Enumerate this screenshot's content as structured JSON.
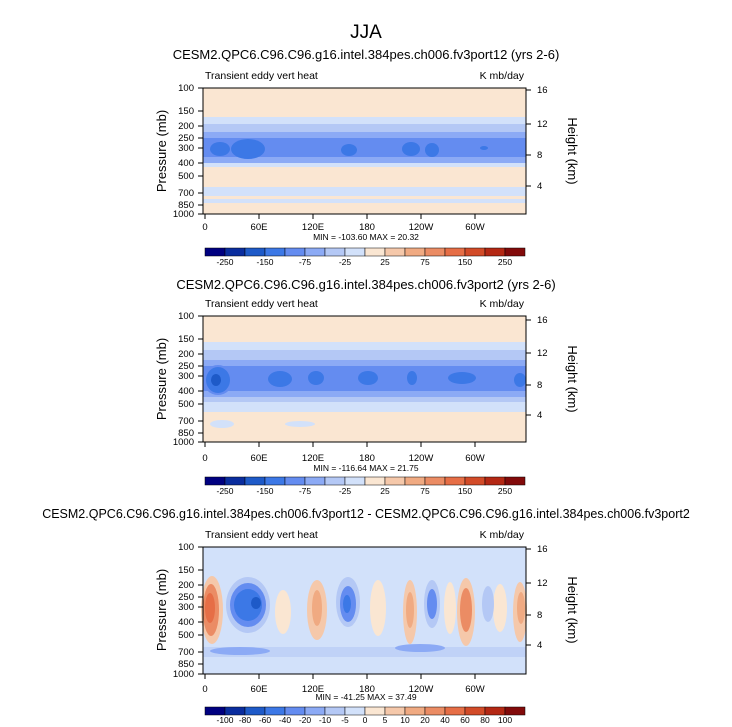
{
  "page_title": "JJA",
  "chart_data": [
    {
      "type": "heatmap",
      "title": "CESM2.QPC6.C96.C96.g16.intel.384pes.ch006.fv3port12 (yrs 2-6)",
      "left_label": "Transient eddy vert heat",
      "right_label": "K mb/day",
      "ylabel": "Pressure (mb)",
      "ylabel_right": "Height (km)",
      "y_ticks": [
        "100",
        "150",
        "200",
        "250",
        "300",
        "400",
        "500",
        "700",
        "850",
        "1000"
      ],
      "y_ticks_right": [
        "16",
        "12",
        "8",
        "4"
      ],
      "x_ticks": [
        "0",
        "60E",
        "120E",
        "180",
        "120W",
        "60W"
      ],
      "minmax": "MIN = -103.60  MAX =  20.32",
      "min": -103.6,
      "max": 20.32,
      "colorbar_labels": [
        "-250",
        "-150",
        "-75",
        "-25",
        "25",
        "75",
        "150",
        "250"
      ],
      "colors": [
        "#000080",
        "#0a2d9e",
        "#1e5ac8",
        "#3c78e6",
        "#648cf0",
        "#8caaf5",
        "#b4c8f5",
        "#d2e1fa",
        "#fae6d2",
        "#f5c8aa",
        "#f0aa82",
        "#eb8c64",
        "#e66e46",
        "#d24b28",
        "#b42814",
        "#820a0a"
      ]
    },
    {
      "type": "heatmap",
      "title": "CESM2.QPC6.C96.C96.g16.intel.384pes.ch006.fv3port2 (yrs 2-6)",
      "left_label": "Transient eddy vert heat",
      "right_label": "K mb/day",
      "ylabel": "Pressure (mb)",
      "ylabel_right": "Height (km)",
      "y_ticks": [
        "100",
        "150",
        "200",
        "250",
        "300",
        "400",
        "500",
        "700",
        "850",
        "1000"
      ],
      "y_ticks_right": [
        "16",
        "12",
        "8",
        "4"
      ],
      "x_ticks": [
        "0",
        "60E",
        "120E",
        "180",
        "120W",
        "60W"
      ],
      "minmax": "MIN = -116.64  MAX =  21.75",
      "min": -116.64,
      "max": 21.75,
      "colorbar_labels": [
        "-250",
        "-150",
        "-75",
        "-25",
        "25",
        "75",
        "150",
        "250"
      ],
      "colors": [
        "#000080",
        "#0a2d9e",
        "#1e5ac8",
        "#3c78e6",
        "#648cf0",
        "#8caaf5",
        "#b4c8f5",
        "#d2e1fa",
        "#fae6d2",
        "#f5c8aa",
        "#f0aa82",
        "#eb8c64",
        "#e66e46",
        "#d24b28",
        "#b42814",
        "#820a0a"
      ]
    },
    {
      "type": "heatmap",
      "title": "CESM2.QPC6.C96.C96.g16.intel.384pes.ch006.fv3port12 - CESM2.QPC6.C96.C96.g16.intel.384pes.ch006.fv3port2",
      "left_label": "Transient eddy vert heat",
      "right_label": "K mb/day",
      "ylabel": "Pressure (mb)",
      "ylabel_right": "Height (km)",
      "y_ticks": [
        "100",
        "150",
        "200",
        "250",
        "300",
        "400",
        "500",
        "700",
        "850",
        "1000"
      ],
      "y_ticks_right": [
        "16",
        "12",
        "8",
        "4"
      ],
      "x_ticks": [
        "0",
        "60E",
        "120E",
        "180",
        "120W",
        "60W"
      ],
      "minmax": "MIN = -41.25  MAX =  37.49",
      "min": -41.25,
      "max": 37.49,
      "colorbar_labels": [
        "-100",
        "-80",
        "-60",
        "-40",
        "-20",
        "-10",
        "-5",
        "0",
        "5",
        "10",
        "20",
        "40",
        "60",
        "80",
        "100"
      ],
      "colors": [
        "#000080",
        "#0a2d9e",
        "#1e5ac8",
        "#3c78e6",
        "#648cf0",
        "#8caaf5",
        "#b4c8f5",
        "#d2e1fa",
        "#fae6d2",
        "#f5c8aa",
        "#f0aa82",
        "#eb8c64",
        "#e66e46",
        "#d24b28",
        "#b42814",
        "#820a0a"
      ]
    }
  ]
}
